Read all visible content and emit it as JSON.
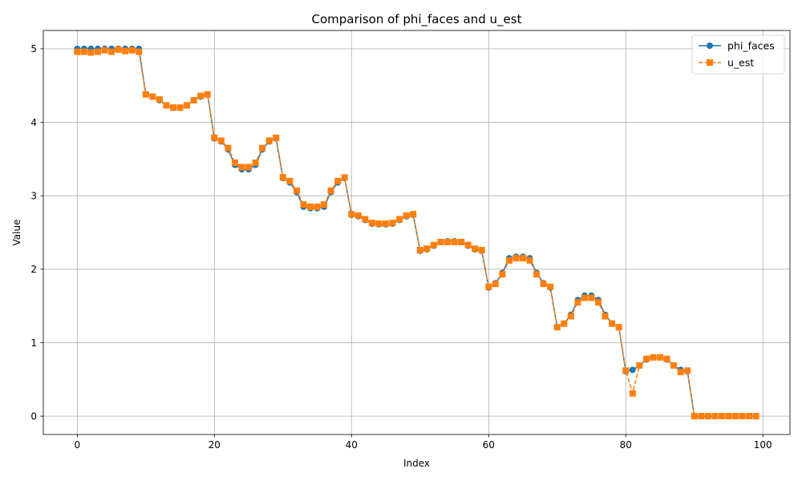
{
  "chart_data": {
    "type": "line",
    "title": "Comparison of phi_faces and u_est",
    "xlabel": "Index",
    "ylabel": "Value",
    "xlim": [
      -4.95,
      103.95
    ],
    "ylim": [
      -0.25,
      5.25
    ],
    "xticks": [
      0,
      20,
      40,
      60,
      80,
      100
    ],
    "yticks": [
      0,
      1,
      2,
      3,
      4,
      5
    ],
    "grid": true,
    "legend": "top-right",
    "series": [
      {
        "name": "phi_faces",
        "color": "#1f77b4",
        "linestyle": "solid",
        "marker": "circle",
        "x": [
          0,
          1,
          2,
          3,
          4,
          5,
          6,
          7,
          8,
          9,
          10,
          11,
          12,
          13,
          14,
          15,
          16,
          17,
          18,
          19,
          20,
          21,
          22,
          23,
          24,
          25,
          26,
          27,
          28,
          29,
          30,
          31,
          32,
          33,
          34,
          35,
          36,
          37,
          38,
          39,
          40,
          41,
          42,
          43,
          44,
          45,
          46,
          47,
          48,
          49,
          50,
          51,
          52,
          53,
          54,
          55,
          56,
          57,
          58,
          59,
          60,
          61,
          62,
          63,
          64,
          65,
          66,
          67,
          68,
          69,
          70,
          71,
          72,
          73,
          74,
          75,
          76,
          77,
          78,
          79,
          80,
          81,
          82,
          83,
          84,
          85,
          86,
          87,
          88,
          89,
          90,
          91,
          92,
          93,
          94,
          95,
          96,
          97,
          98,
          99
        ],
        "values": [
          5.0,
          5.0,
          5.0,
          5.0,
          5.0,
          5.0,
          5.0,
          5.0,
          5.0,
          5.0,
          4.38,
          4.35,
          4.3,
          4.23,
          4.2,
          4.2,
          4.23,
          4.3,
          4.35,
          4.38,
          3.78,
          3.74,
          3.63,
          3.42,
          3.36,
          3.36,
          3.42,
          3.63,
          3.74,
          3.78,
          3.24,
          3.18,
          3.05,
          2.85,
          2.83,
          2.83,
          2.85,
          3.05,
          3.18,
          3.24,
          2.74,
          2.72,
          2.67,
          2.62,
          2.61,
          2.61,
          2.62,
          2.67,
          2.72,
          2.74,
          2.25,
          2.27,
          2.32,
          2.37,
          2.38,
          2.38,
          2.37,
          2.32,
          2.27,
          2.25,
          1.75,
          1.81,
          1.95,
          2.15,
          2.17,
          2.17,
          2.15,
          1.95,
          1.81,
          1.75,
          1.21,
          1.26,
          1.38,
          1.58,
          1.64,
          1.64,
          1.58,
          1.38,
          1.26,
          1.21,
          0.61,
          0.63,
          0.69,
          0.77,
          0.8,
          0.8,
          0.77,
          0.69,
          0.63,
          0.61,
          0.0,
          0.0,
          0.0,
          0.0,
          0.0,
          0.0,
          0.0,
          0.0,
          0.0,
          0.0
        ]
      },
      {
        "name": "u_est",
        "color": "#ff7f0e",
        "linestyle": "dashed",
        "marker": "square",
        "x": [
          0,
          1,
          2,
          3,
          4,
          5,
          6,
          7,
          8,
          9,
          10,
          11,
          12,
          13,
          14,
          15,
          16,
          17,
          18,
          19,
          20,
          21,
          22,
          23,
          24,
          25,
          26,
          27,
          28,
          29,
          30,
          31,
          32,
          33,
          34,
          35,
          36,
          37,
          38,
          39,
          40,
          41,
          42,
          43,
          44,
          45,
          46,
          47,
          48,
          49,
          50,
          51,
          52,
          53,
          54,
          55,
          56,
          57,
          58,
          59,
          60,
          61,
          62,
          63,
          64,
          65,
          66,
          67,
          68,
          69,
          70,
          71,
          72,
          73,
          74,
          75,
          76,
          77,
          78,
          79,
          80,
          81,
          82,
          83,
          84,
          85,
          86,
          87,
          88,
          89,
          90,
          91,
          92,
          93,
          94,
          95,
          96,
          97,
          98,
          99
        ],
        "values": [
          4.96,
          4.96,
          4.95,
          4.96,
          4.98,
          4.96,
          4.99,
          4.97,
          4.98,
          4.96,
          4.38,
          4.35,
          4.31,
          4.23,
          4.2,
          4.2,
          4.23,
          4.3,
          4.36,
          4.38,
          3.79,
          3.75,
          3.65,
          3.45,
          3.39,
          3.39,
          3.45,
          3.65,
          3.75,
          3.79,
          3.25,
          3.2,
          3.07,
          2.88,
          2.85,
          2.85,
          2.88,
          3.07,
          3.2,
          3.25,
          2.75,
          2.73,
          2.68,
          2.63,
          2.62,
          2.62,
          2.63,
          2.68,
          2.73,
          2.75,
          2.26,
          2.28,
          2.33,
          2.37,
          2.37,
          2.37,
          2.37,
          2.33,
          2.28,
          2.26,
          1.76,
          1.8,
          1.93,
          2.12,
          2.15,
          2.15,
          2.12,
          1.93,
          1.8,
          1.76,
          1.21,
          1.26,
          1.36,
          1.55,
          1.61,
          1.61,
          1.55,
          1.36,
          1.26,
          1.21,
          0.62,
          0.31,
          0.69,
          0.78,
          0.8,
          0.8,
          0.78,
          0.69,
          0.6,
          0.62,
          0.0,
          0.0,
          0.0,
          0.0,
          0.0,
          0.0,
          0.0,
          0.0,
          0.0,
          0.0
        ]
      }
    ]
  }
}
